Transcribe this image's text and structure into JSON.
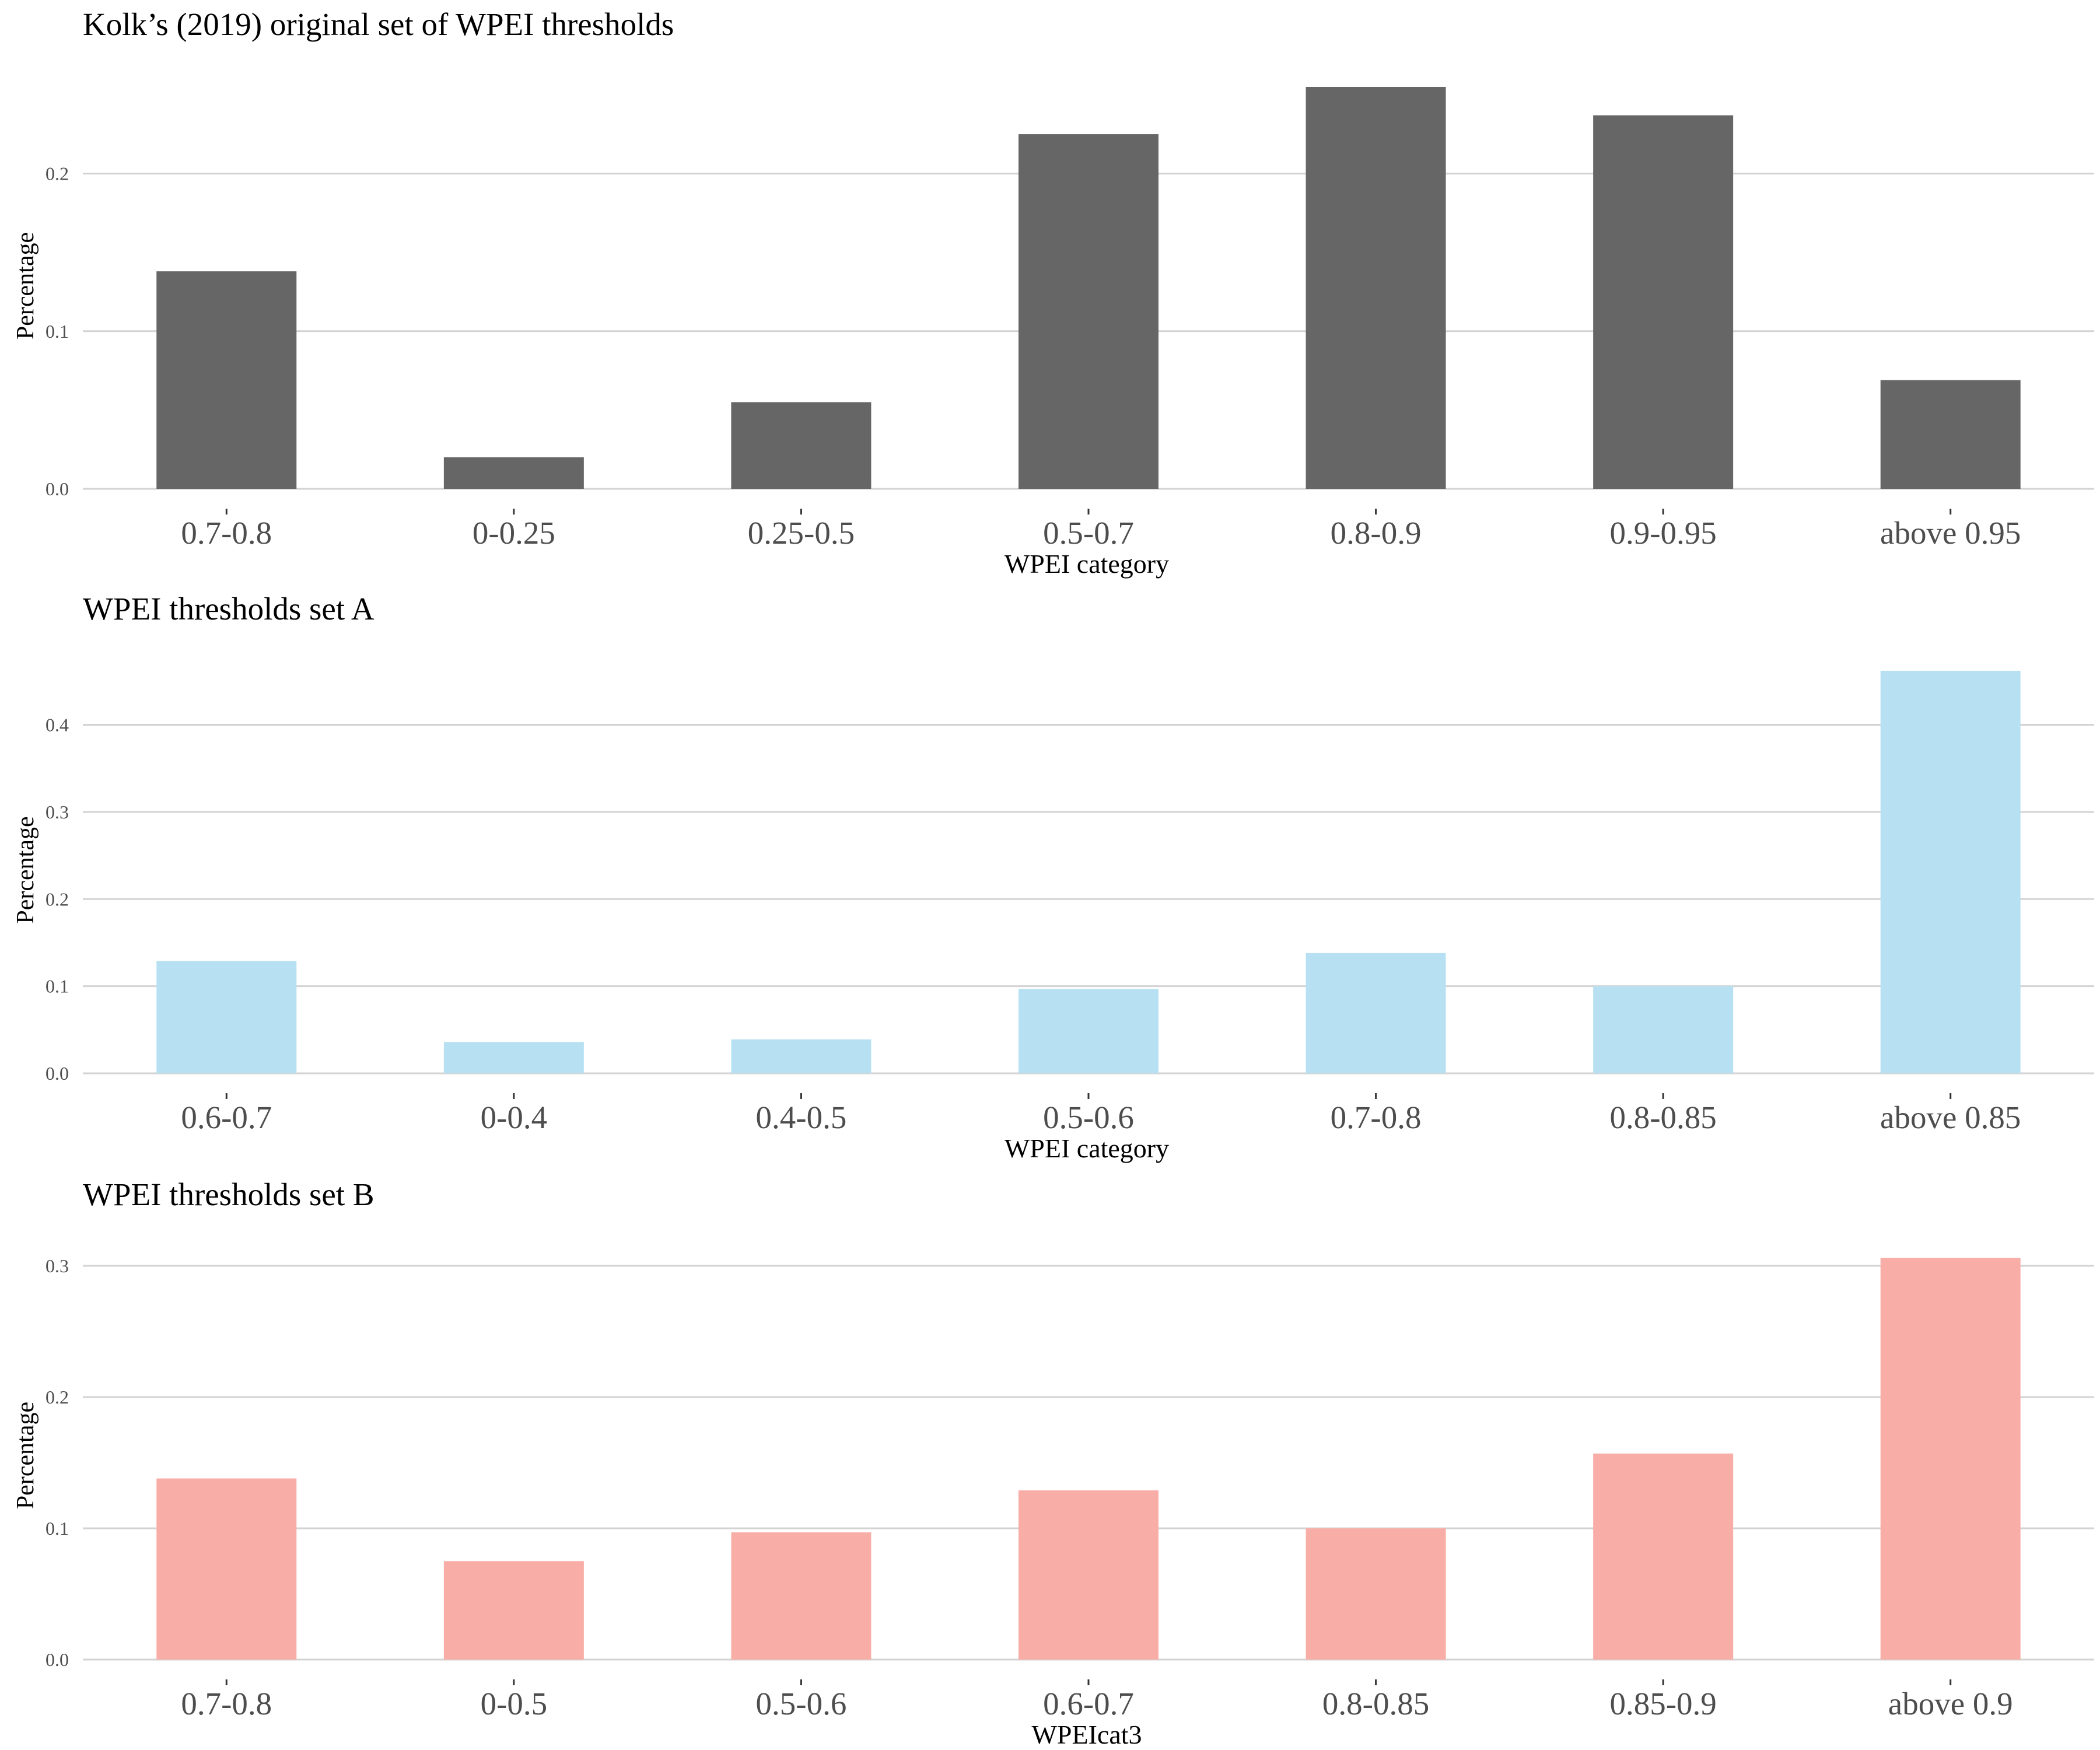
{
  "chart_data": [
    {
      "type": "bar",
      "title": "Kolk’s (2019) original set of WPEI thresholds",
      "xlabel": "WPEI category",
      "ylabel": "Percentage",
      "categories": [
        "0.7-0.8",
        "0-0.25",
        "0.25-0.5",
        "0.5-0.7",
        "0.8-0.9",
        "0.9-0.95",
        "above 0.95"
      ],
      "values": [
        0.138,
        0.02,
        0.055,
        0.225,
        0.255,
        0.237,
        0.069
      ],
      "yticks": [
        "0.0",
        "0.1",
        "0.2"
      ],
      "ytick_values": [
        0,
        0.1,
        0.2
      ],
      "ylim": [
        0,
        0.265
      ],
      "grid": "horizontal",
      "color": "#666666"
    },
    {
      "type": "bar",
      "title": "WPEI thresholds set A",
      "xlabel": "WPEI category",
      "ylabel": "Percentage",
      "categories": [
        "0.6-0.7",
        "0-0.4",
        "0.4-0.5",
        "0.5-0.6",
        "0.7-0.8",
        "0.8-0.85",
        "above 0.85"
      ],
      "values": [
        0.129,
        0.036,
        0.039,
        0.097,
        0.138,
        0.1,
        0.462
      ],
      "yticks": [
        "0.0",
        "0.1",
        "0.2",
        "0.3",
        "0.4"
      ],
      "ytick_values": [
        0,
        0.1,
        0.2,
        0.3,
        0.4
      ],
      "ylim": [
        0,
        0.48
      ],
      "grid": "horizontal",
      "color": "#b7e1f2"
    },
    {
      "type": "bar",
      "title": "WPEI thresholds set B",
      "xlabel": "WPEIcat3",
      "ylabel": "Percentage",
      "categories": [
        "0.7-0.8",
        "0-0.5",
        "0.5-0.6",
        "0.6-0.7",
        "0.8-0.85",
        "0.85-0.9",
        "above 0.9"
      ],
      "values": [
        0.138,
        0.075,
        0.097,
        0.129,
        0.1,
        0.157,
        0.306
      ],
      "yticks": [
        "0.0",
        "0.1",
        "0.2",
        "0.3"
      ],
      "ytick_values": [
        0,
        0.1,
        0.2,
        0.3
      ],
      "ylim": [
        0,
        0.32
      ],
      "grid": "horizontal",
      "color": "#f9ada7"
    }
  ]
}
